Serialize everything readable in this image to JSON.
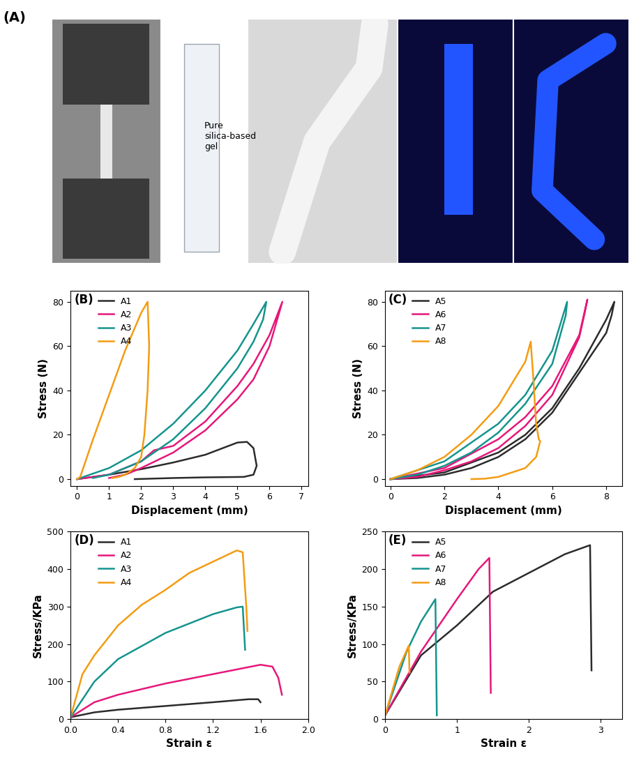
{
  "photo_panel": {
    "label": "(A)",
    "caption": "Pure\nsilica-based\ngel"
  },
  "chart_data": [
    {
      "type": "line",
      "title": "(B)",
      "x_label": "Displacement (mm)",
      "y_label": "Stress (N)",
      "xlim": [
        -0.2,
        7.2
      ],
      "xticks": [
        0,
        1,
        2,
        3,
        4,
        5,
        6,
        7
      ],
      "ylim": [
        -3,
        85
      ],
      "yticks": [
        0,
        20,
        40,
        60,
        80
      ],
      "legend": "upper left",
      "series": [
        {
          "name": "A1",
          "color": "#2b2b2b",
          "x": [
            0,
            1,
            2,
            3,
            4,
            5,
            5.3,
            5.5,
            5.6,
            5.5,
            5.2,
            4,
            3,
            1.8
          ],
          "values": [
            0,
            2,
            4.5,
            7.5,
            11,
            16.5,
            16.8,
            14,
            6,
            2,
            1,
            0.8,
            0.5,
            0
          ]
        },
        {
          "name": "A2",
          "color": "#e6177a",
          "x": [
            0,
            1,
            2,
            2.4,
            3,
            4,
            5,
            5.5,
            6,
            6.4,
            6.2,
            6,
            5.5,
            5,
            4,
            3,
            2,
            1.5,
            1
          ],
          "values": [
            0,
            2,
            8,
            13,
            15,
            26,
            42,
            52,
            65,
            80,
            70,
            60,
            45,
            36,
            22,
            12,
            5,
            2,
            0.5
          ]
        },
        {
          "name": "A3",
          "color": "#14948e",
          "x": [
            0,
            1,
            2,
            3,
            4,
            5,
            5.5,
            5.9,
            5.8,
            5.5,
            5,
            4,
            3,
            2,
            1,
            0.5
          ],
          "values": [
            0,
            5,
            13,
            25,
            40,
            58,
            70,
            80,
            72,
            62,
            50,
            32,
            18,
            8,
            2,
            0.5
          ]
        },
        {
          "name": "A4",
          "color": "#f39c12",
          "x": [
            0,
            0.1,
            0.5,
            1,
            1.5,
            2,
            2.2,
            2.25,
            2.2,
            2.1,
            2,
            1.8,
            1.5,
            1.3,
            1.1
          ],
          "values": [
            0,
            1,
            18,
            38,
            58,
            75,
            80,
            60,
            40,
            20,
            10,
            5,
            2,
            1,
            0.5
          ]
        }
      ]
    },
    {
      "type": "line",
      "title": "(C)",
      "x_label": "Displacement (mm)",
      "y_label": "Stress (N)",
      "xlim": [
        -0.2,
        8.6
      ],
      "xticks": [
        0,
        2,
        4,
        6,
        8
      ],
      "ylim": [
        -3,
        85
      ],
      "yticks": [
        0,
        20,
        40,
        60,
        80
      ],
      "legend": "upper left",
      "series": [
        {
          "name": "A5",
          "color": "#2b2b2b",
          "x": [
            0,
            2,
            4,
            5,
            6,
            7,
            8,
            8.3,
            8.2,
            8,
            7,
            6,
            5,
            4,
            3,
            2,
            1,
            0
          ],
          "values": [
            0,
            3,
            12,
            20,
            32,
            50,
            72,
            80,
            74,
            66,
            48,
            30,
            18,
            10,
            5,
            2,
            0.5,
            0
          ]
        },
        {
          "name": "A6",
          "color": "#e6177a",
          "x": [
            0,
            2,
            4,
            5,
            6,
            7,
            7.3,
            7.2,
            7,
            6,
            5,
            4,
            3,
            2,
            1,
            0
          ],
          "values": [
            0,
            5,
            18,
            28,
            42,
            65,
            81,
            75,
            64,
            38,
            24,
            14,
            8,
            4,
            1,
            0
          ]
        },
        {
          "name": "A7",
          "color": "#14948e",
          "x": [
            0,
            2,
            4,
            5,
            6,
            6.55,
            6.5,
            6,
            5,
            4,
            3,
            2,
            1,
            0
          ],
          "values": [
            0,
            8,
            25,
            38,
            58,
            80,
            74,
            52,
            34,
            21,
            12,
            6,
            2,
            0
          ]
        },
        {
          "name": "A8",
          "color": "#f39c12",
          "x": [
            0,
            1,
            2,
            3,
            4,
            5,
            5.2,
            5.3,
            5.4,
            5.5,
            5.55,
            5.4,
            5,
            4.5,
            4,
            3.5,
            3
          ],
          "values": [
            0,
            4,
            10,
            20,
            33,
            53,
            62,
            45,
            25,
            18,
            17,
            10,
            5,
            3,
            1,
            0.2,
            0
          ]
        }
      ]
    },
    {
      "type": "line",
      "title": "(D)",
      "x_label": "Strain ε",
      "y_label": "Stress/KPa",
      "xlim": [
        0,
        2
      ],
      "xticks": [
        {
          "value": 0,
          "label": "0.0"
        },
        {
          "value": 0.4,
          "label": "0.4"
        },
        {
          "value": 0.8,
          "label": "0.8"
        },
        {
          "value": 1.2,
          "label": "1.2"
        },
        {
          "value": 1.6,
          "label": "1.6"
        },
        {
          "value": 2,
          "label": "2.0"
        }
      ],
      "ylim": [
        0,
        500
      ],
      "yticks": [
        0,
        100,
        200,
        300,
        400,
        500
      ],
      "legend": "upper left",
      "series": [
        {
          "name": "A1",
          "color": "#2b2b2b",
          "x": [
            0,
            0.2,
            0.4,
            0.8,
            1.2,
            1.5,
            1.58,
            1.6
          ],
          "values": [
            5,
            18,
            25,
            35,
            45,
            53,
            53,
            45
          ]
        },
        {
          "name": "A2",
          "color": "#e6177a",
          "x": [
            0,
            0.2,
            0.4,
            0.8,
            1.2,
            1.6,
            1.7,
            1.75,
            1.78
          ],
          "values": [
            5,
            45,
            65,
            95,
            120,
            145,
            140,
            110,
            65
          ]
        },
        {
          "name": "A3",
          "color": "#14948e",
          "x": [
            0,
            0.2,
            0.4,
            0.6,
            0.8,
            1.0,
            1.2,
            1.4,
            1.45,
            1.47
          ],
          "values": [
            5,
            100,
            160,
            195,
            230,
            255,
            280,
            298,
            300,
            185
          ]
        },
        {
          "name": "A4",
          "color": "#f39c12",
          "x": [
            0,
            0.1,
            0.2,
            0.4,
            0.6,
            0.8,
            1.0,
            1.2,
            1.4,
            1.45,
            1.48,
            1.49
          ],
          "values": [
            5,
            120,
            170,
            250,
            305,
            345,
            390,
            420,
            450,
            445,
            300,
            235
          ]
        }
      ]
    },
    {
      "type": "line",
      "title": "(E)",
      "x_label": "Strain ε",
      "y_label": "Stress/KPa",
      "xlim": [
        0,
        3.3
      ],
      "xticks": [
        0,
        1,
        2,
        3
      ],
      "ylim": [
        0,
        250
      ],
      "yticks": [
        0,
        50,
        100,
        150,
        200,
        250
      ],
      "legend": "upper left",
      "series": [
        {
          "name": "A5",
          "color": "#2b2b2b",
          "x": [
            0,
            0.5,
            1,
            1.5,
            2,
            2.5,
            2.85,
            2.87
          ],
          "values": [
            5,
            85,
            125,
            170,
            195,
            220,
            232,
            65
          ]
        },
        {
          "name": "A6",
          "color": "#e6177a",
          "x": [
            0,
            0.5,
            1,
            1.3,
            1.45,
            1.47
          ],
          "values": [
            5,
            90,
            160,
            200,
            215,
            35
          ]
        },
        {
          "name": "A7",
          "color": "#14948e",
          "x": [
            0,
            0.3,
            0.5,
            0.7,
            0.72
          ],
          "values": [
            5,
            90,
            130,
            160,
            5
          ]
        },
        {
          "name": "A8",
          "color": "#f39c12",
          "x": [
            0,
            0.2,
            0.33,
            0.34
          ],
          "values": [
            5,
            70,
            98,
            62
          ]
        }
      ]
    }
  ]
}
